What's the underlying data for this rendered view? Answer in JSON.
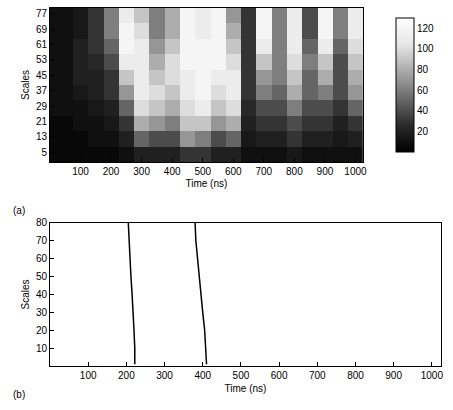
{
  "chart_data": [
    {
      "type": "heatmap",
      "label": "(a)",
      "x_label": "Time (ns)",
      "y_label": "Scales",
      "x": [
        0,
        50,
        100,
        150,
        200,
        250,
        300,
        350,
        400,
        450,
        500,
        550,
        600,
        650,
        700,
        750,
        800,
        850,
        900,
        950,
        1000
      ],
      "y": [
        4,
        12,
        20,
        28,
        36,
        44,
        52,
        60,
        68,
        76
      ],
      "z": [
        [
          5,
          5,
          5,
          5,
          5,
          10,
          20,
          20,
          20,
          30,
          30,
          20,
          20,
          10,
          10,
          10,
          15,
          10,
          10,
          10,
          10
        ],
        [
          5,
          5,
          5,
          10,
          10,
          20,
          50,
          40,
          40,
          70,
          60,
          40,
          50,
          15,
          20,
          20,
          30,
          20,
          20,
          15,
          20
        ],
        [
          5,
          5,
          10,
          10,
          15,
          30,
          80,
          70,
          60,
          90,
          90,
          70,
          80,
          20,
          30,
          30,
          40,
          30,
          30,
          20,
          30
        ],
        [
          10,
          10,
          10,
          15,
          20,
          50,
          100,
          90,
          80,
          100,
          110,
          90,
          100,
          25,
          40,
          40,
          60,
          40,
          40,
          30,
          50
        ],
        [
          10,
          10,
          15,
          20,
          30,
          70,
          110,
          100,
          90,
          110,
          120,
          100,
          110,
          30,
          60,
          50,
          80,
          50,
          60,
          40,
          70
        ],
        [
          10,
          10,
          20,
          20,
          30,
          90,
          110,
          90,
          100,
          110,
          120,
          110,
          110,
          30,
          70,
          60,
          90,
          50,
          80,
          40,
          80
        ],
        [
          10,
          10,
          20,
          25,
          40,
          110,
          110,
          80,
          100,
          120,
          120,
          120,
          100,
          30,
          90,
          60,
          100,
          60,
          90,
          40,
          90
        ],
        [
          10,
          10,
          20,
          30,
          50,
          120,
          110,
          70,
          90,
          120,
          120,
          120,
          90,
          30,
          110,
          60,
          110,
          50,
          110,
          50,
          100
        ],
        [
          10,
          10,
          15,
          30,
          60,
          120,
          100,
          60,
          80,
          120,
          110,
          120,
          80,
          30,
          120,
          60,
          110,
          40,
          120,
          60,
          110
        ],
        [
          10,
          10,
          15,
          30,
          60,
          110,
          90,
          60,
          80,
          120,
          110,
          120,
          70,
          30,
          120,
          60,
          110,
          40,
          120,
          60,
          110
        ]
      ],
      "xlim": [
        0,
        1024
      ],
      "xticks": [
        100,
        200,
        300,
        400,
        500,
        600,
        700,
        800,
        900,
        1000
      ],
      "ylim": [
        0,
        80
      ],
      "yticks": [
        5,
        13,
        21,
        29,
        37,
        45,
        53,
        61,
        69,
        77
      ],
      "zlim": [
        0,
        130
      ],
      "zticks": [
        20,
        40,
        60,
        80,
        100,
        120
      ]
    },
    {
      "type": "line",
      "label": "(b)",
      "x_label": "Time (ns)",
      "y_label": "Scales",
      "series": [
        {
          "color": "#000000",
          "x": [
            222,
            222,
            220,
            218,
            215,
            212,
            210,
            207,
            205
          ],
          "y": [
            1,
            10,
            20,
            30,
            40,
            50,
            60,
            70,
            80
          ]
        },
        {
          "color": "#000000",
          "x": [
            410,
            408,
            405,
            400,
            395,
            390,
            385,
            382,
            380
          ],
          "y": [
            1,
            10,
            20,
            30,
            40,
            50,
            60,
            70,
            80
          ]
        }
      ],
      "xlim": [
        0,
        1024
      ],
      "xticks": [
        100,
        200,
        300,
        400,
        500,
        600,
        700,
        800,
        900,
        1000
      ],
      "ylim": [
        0,
        80
      ],
      "yticks": [
        10,
        20,
        30,
        40,
        50,
        60,
        70,
        80
      ]
    }
  ]
}
